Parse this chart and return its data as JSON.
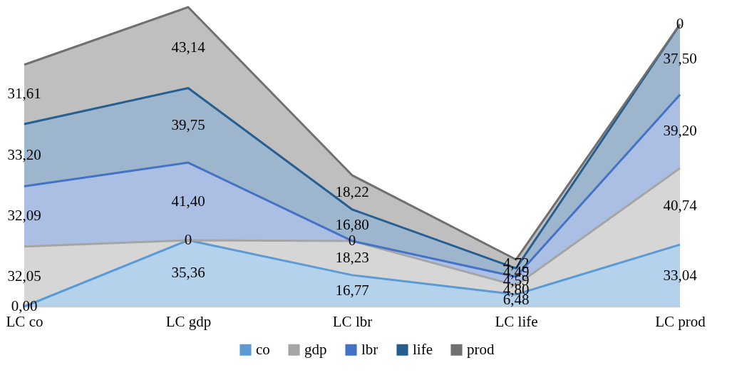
{
  "chart_data": {
    "type": "area",
    "stacked": true,
    "categories": [
      "LC co",
      "LC gdp",
      "LC lbr",
      "LC life",
      "LC prod"
    ],
    "series": [
      {
        "name": "co",
        "color": "#5b9bd5",
        "values": [
          0,
          35.36,
          16.77,
          6.48,
          33.04
        ],
        "value_labels": [
          "0,00",
          "35,36",
          "16,77",
          "6,48",
          "33,04"
        ]
      },
      {
        "name": "gdp",
        "color": "#a5a5a5",
        "values": [
          32.05,
          0,
          18.23,
          4.8,
          40.74
        ],
        "value_labels": [
          "32,05",
          "0",
          "18,23",
          "4,80",
          "40,74"
        ]
      },
      {
        "name": "lbr",
        "color": "#4472c4",
        "values": [
          32.09,
          41.4,
          0,
          4.59,
          39.2
        ],
        "value_labels": [
          "32,09",
          "41,40",
          "0",
          "4,59",
          "39,20"
        ]
      },
      {
        "name": "life",
        "color": "#255e91",
        "values": [
          33.2,
          39.75,
          16.8,
          4.49,
          37.5
        ],
        "value_labels": [
          "33,20",
          "39,75",
          "16,80",
          "4,49",
          "37,50"
        ]
      },
      {
        "name": "prod",
        "color": "#707070",
        "values": [
          31.61,
          43.14,
          18.22,
          4.72,
          0
        ],
        "value_labels": [
          "31,61",
          "43,14",
          "18,22",
          "4,72",
          "0"
        ]
      }
    ],
    "legend": "bottom"
  }
}
